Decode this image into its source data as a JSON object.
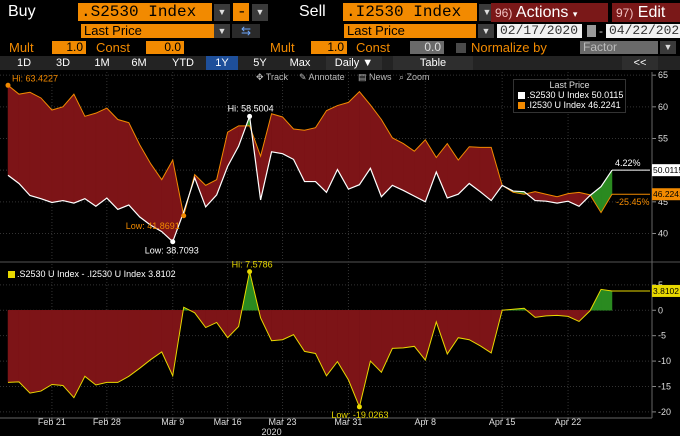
{
  "header": {
    "buy_label": "Buy",
    "buy_security": ".S2530 Index",
    "sell_label": "Sell",
    "sell_security": ".I2530 Index",
    "actions_num": "96)",
    "actions_label": "Actions",
    "edit_num": "97)",
    "edit_label": "Edit"
  },
  "row2": {
    "buy_field": "Last Price",
    "sell_field": "Last Price",
    "start_date": "02/17/2020",
    "end_date": "04/22/202"
  },
  "row3": {
    "mult_label": "Mult",
    "mult_buy": "1.0",
    "const_label": "Const",
    "const_buy": "0.0",
    "mult_sell": "1.0",
    "const_sell": "0.0",
    "normalize_label": "Normalize by",
    "factor_value": "Factor"
  },
  "toolbar": {
    "periods": [
      "1D",
      "3D",
      "1M",
      "6M",
      "YTD",
      "1Y",
      "5Y",
      "Max"
    ],
    "active_period": "1Y",
    "frequency": "Daily ▼",
    "table_label": "Table",
    "collapse_label": "<<"
  },
  "chart_tools": {
    "track": "Track",
    "annotate": "Annotate",
    "news": "News",
    "zoom": "Zoom"
  },
  "colors": {
    "orange": "#f28a00",
    "maroon": "#7d1417",
    "green": "#2a8a20",
    "yellow": "#e8d800",
    "active_blue": "#1e4f9a"
  },
  "chart_data": [
    {
      "type": "line",
      "legend_title": "Last Price",
      "legend_position": "top-right",
      "series": [
        {
          "name": ".S2530 U Index",
          "color": "#ffffff",
          "last": "50.0115",
          "values": [
            49.2,
            47.9,
            46.0,
            45.5,
            44.9,
            45.2,
            44.8,
            45.5,
            44.3,
            45.6,
            43.8,
            44.5,
            42.6,
            41.3,
            40.3,
            38.7,
            43.4,
            48.8,
            44.2,
            46.1,
            50.6,
            53.8,
            58.5,
            45.3,
            52.9,
            52.6,
            51.7,
            48.2,
            48.2,
            46.5,
            50.1,
            47.0,
            47.7,
            50.3,
            45.8,
            47.6,
            46.8,
            45.9,
            45.0,
            49.7,
            45.6,
            46.2,
            47.9,
            46.6,
            45.2,
            47.6,
            46.7,
            46.6,
            45.2,
            45.1,
            44.8,
            45.1,
            44.3,
            46.0,
            47.4,
            50.0
          ]
        },
        {
          "name": ".I2530 U Index",
          "color": "#f28a00",
          "last": "46.2241",
          "values": [
            63.4,
            62.0,
            62.3,
            61.4,
            59.5,
            60.0,
            62.0,
            58.5,
            59.0,
            59.8,
            58.0,
            57.5,
            54.0,
            51.0,
            48.5,
            51.6,
            42.8,
            49.3,
            47.6,
            48.5,
            56.0,
            57.0,
            57.0,
            52.2,
            58.9,
            58.4,
            56.5,
            56.3,
            56.7,
            59.4,
            60.2,
            60.7,
            62.4,
            60.3,
            58.0,
            55.1,
            54.2,
            53.0,
            54.8,
            52.0,
            54.2,
            51.6,
            53.7,
            53.6,
            53.6,
            47.6,
            46.5,
            46.2,
            46.6,
            46.2,
            45.8,
            46.3,
            46.5,
            46.1,
            43.3,
            46.2
          ]
        }
      ],
      "annotations": [
        {
          "text": "Hi: 63.4227",
          "color": "#f28a00"
        },
        {
          "text": "Hi: 58.5004",
          "color": "#ffffff"
        },
        {
          "text": "Low: 38.7093",
          "color": "#ffffff"
        },
        {
          "text": "Low: 41.8691",
          "color": "#f28a00"
        },
        {
          "text": "4.22%",
          "color": "#ffffff"
        },
        {
          "text": "-25.45%",
          "color": "#f28a00"
        }
      ],
      "yticks": [
        "40",
        "45",
        "50",
        "55",
        "60",
        "65"
      ],
      "ylim": [
        35.5,
        65.5
      ],
      "grid": true
    },
    {
      "type": "area",
      "series": [
        {
          "name": ".S2530 U Index - .I2530 U Index",
          "color": "#e8d800",
          "last": "3.8102",
          "values": [
            -14.2,
            -14.1,
            -16.3,
            -15.9,
            -14.6,
            -14.8,
            -17.2,
            -13.0,
            -14.7,
            -14.2,
            -14.2,
            -13.0,
            -11.4,
            -9.7,
            -8.2,
            -12.9,
            0.6,
            -0.5,
            -3.4,
            -2.4,
            -5.4,
            -3.2,
            7.6,
            -1.5,
            -6.0,
            -5.8,
            -4.8,
            -8.1,
            -8.5,
            -12.9,
            -10.1,
            -13.7,
            -19.0,
            -10.0,
            -12.2,
            -7.5,
            -7.4,
            -7.1,
            -9.8,
            -2.3,
            -8.6,
            -5.4,
            -5.8,
            -7.0,
            -8.4,
            -0.0,
            0.2,
            0.4,
            -1.4,
            -1.1,
            -1.0,
            -1.2,
            -2.2,
            -0.1,
            4.1,
            3.8
          ]
        }
      ],
      "annotations": [
        {
          "text": "Hi: 7.5786",
          "color": "#e8d800"
        },
        {
          "text": "Low: -19.0263",
          "color": "#e8d800"
        }
      ],
      "yticks": [
        "5",
        "0",
        "-5",
        "-10",
        "-15",
        "-20"
      ],
      "ylim": [
        -21.2,
        9.3
      ],
      "grid": true
    }
  ],
  "x_axis": {
    "ticks": [
      "Feb 21",
      "Feb 28",
      "Mar 9",
      "Mar 16",
      "Mar 23",
      "Mar 31",
      "Apr 8",
      "Apr 15",
      "Apr 22"
    ],
    "year_label": "2020"
  }
}
